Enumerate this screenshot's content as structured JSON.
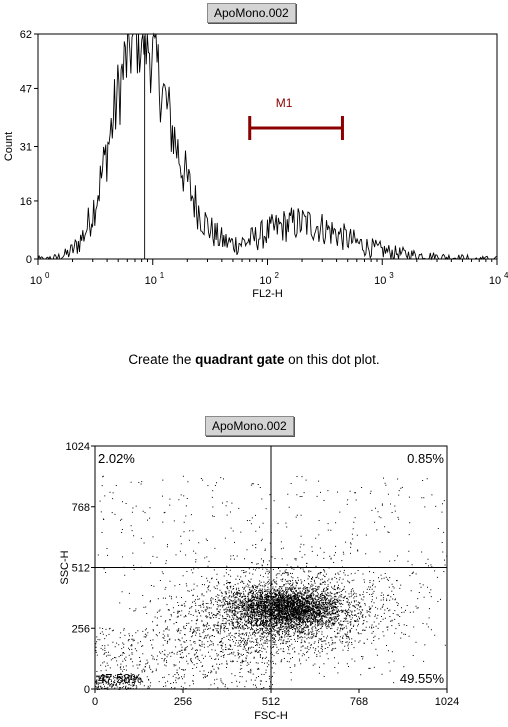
{
  "instruction": {
    "prefix": "Create the ",
    "bold": "quadrant gate",
    "suffix": " on this dot plot."
  },
  "chart_data": [
    {
      "type": "histogram",
      "title": "ApoMono.002",
      "xlabel": "FL2-H",
      "ylabel": "Count",
      "x_scale": "log",
      "xlim": [
        1,
        10000
      ],
      "ylim": [
        0,
        62
      ],
      "y_ticks": [
        0,
        16,
        31,
        47,
        62
      ],
      "x_tick_labels": [
        {
          "base": "10",
          "exp": "0"
        },
        {
          "base": "10",
          "exp": "1"
        },
        {
          "base": "10",
          "exp": "2"
        },
        {
          "base": "10",
          "exp": "3"
        },
        {
          "base": "10",
          "exp": "4"
        }
      ],
      "peaks": [
        {
          "center": 7,
          "height": 52
        },
        {
          "center": 180,
          "height": 9
        }
      ],
      "marker": {
        "label": "M1",
        "from": 70,
        "to": 450,
        "color": "#8b0000"
      }
    },
    {
      "type": "scatter",
      "title": "ApoMono.002",
      "xlabel": "FSC-H",
      "ylabel": "SSC-H",
      "xlim": [
        0,
        1024
      ],
      "ylim": [
        0,
        1024
      ],
      "x_ticks": [
        0,
        256,
        512,
        768,
        1024
      ],
      "y_ticks": [
        0,
        256,
        512,
        768,
        1024
      ],
      "quadrant_lines": {
        "x": 512,
        "y": 512
      },
      "quadrants": [
        {
          "position": "upper-left",
          "value": "2.02%"
        },
        {
          "position": "upper-right",
          "value": "0.85%"
        },
        {
          "position": "lower-left",
          "value": "47.58%"
        },
        {
          "position": "lower-right",
          "value": "49.55%"
        }
      ],
      "main_cluster": {
        "x": 550,
        "y": 340
      }
    }
  ]
}
